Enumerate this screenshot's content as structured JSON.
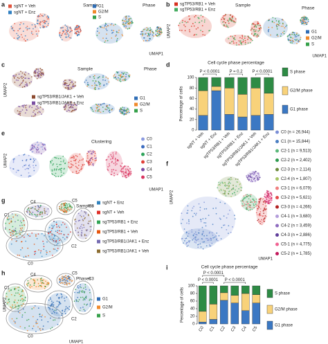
{
  "panels": {
    "a": {
      "label": "a",
      "sample_title": "Sample",
      "sample_legend": [
        {
          "name": "sgNT + Veh",
          "color": "#e0533d"
        },
        {
          "name": "sgNT + Enz",
          "color": "#2f7fc1"
        }
      ],
      "phase_title": "Phase",
      "phase_legend": [
        {
          "name": "G1",
          "color": "#2f6db5"
        },
        {
          "name": "G2/M",
          "color": "#f08a2c"
        },
        {
          "name": "S",
          "color": "#35a04a"
        }
      ],
      "x_axis": "UMAP1"
    },
    "b": {
      "label": "b",
      "sample_title": "Sample",
      "sample_legend": [
        {
          "name": "sgTP53/RB1 + Veh",
          "color": "#d7301f"
        },
        {
          "name": "sgTP53/RB1 + Enz",
          "color": "#41ab5d"
        }
      ],
      "phase_title": "Phase",
      "phase_legend": [
        {
          "name": "G1",
          "color": "#2f6db5"
        },
        {
          "name": "G2/M",
          "color": "#f08a2c"
        },
        {
          "name": "S",
          "color": "#35a04a"
        }
      ],
      "x_axis": "UMAP1",
      "y_axis": "UMAP2"
    },
    "c": {
      "label": "c",
      "sample_title": "Sample",
      "sample_legend": [
        {
          "name": "sgTP53/RB1/JAK1 + Veh",
          "color": "#8c4a2f"
        },
        {
          "name": "sgTP53/RB1/JAK1 + Enz",
          "color": "#7a4fa3"
        }
      ],
      "phase_title": "Phase",
      "phase_legend": [
        {
          "name": "G1",
          "color": "#2f6db5"
        },
        {
          "name": "G2/M",
          "color": "#f08a2c"
        },
        {
          "name": "S",
          "color": "#35a04a"
        }
      ],
      "y_axis": "UMAP2"
    },
    "e": {
      "label": "e",
      "title": "Clustering",
      "legend": [
        {
          "name": "C0",
          "color": "#8c9be0"
        },
        {
          "name": "C1",
          "color": "#3c6cc0"
        },
        {
          "name": "C2",
          "color": "#2ea35a"
        },
        {
          "name": "C3",
          "color": "#e0413a"
        },
        {
          "name": "C4",
          "color": "#7b4aa6"
        },
        {
          "name": "C5",
          "color": "#d9345f"
        }
      ],
      "x_axis": "UMAP1",
      "y_axis": "UMAP2"
    },
    "f": {
      "label": "f",
      "legend": [
        {
          "name": "C0 (n = 26,944)",
          "color": "#7b8fd6"
        },
        {
          "name": "C1 (n = 15,844)",
          "color": "#4a7ec2"
        },
        {
          "name": "C2-1 (n = 9,513)",
          "color": "#5bb87a"
        },
        {
          "name": "C2-2 (n = 2,402)",
          "color": "#2d9a4e"
        },
        {
          "name": "C2-3 (n = 2,114)",
          "color": "#6c8b3c"
        },
        {
          "name": "C2-4 (n = 1,807)",
          "color": "#a6c464"
        },
        {
          "name": "C3-1 (n = 6,079)",
          "color": "#f08080"
        },
        {
          "name": "C3-2 (n = 5,621)",
          "color": "#e34a4a"
        },
        {
          "name": "C3-3 (n = 4,266)",
          "color": "#b22222"
        },
        {
          "name": "C4-1 (n = 3,680)",
          "color": "#b39ddb"
        },
        {
          "name": "C4-2 (n = 3,459)",
          "color": "#8e6bbf"
        },
        {
          "name": "C4-3 (n = 2,886)",
          "color": "#5e3c99"
        },
        {
          "name": "C5-1 (n = 4,775)",
          "color": "#f06292"
        },
        {
          "name": "C5-2 (n = 1,785)",
          "color": "#c2185b"
        }
      ],
      "x_axis": "UMAP1",
      "y_axis": "UMAP2"
    },
    "g": {
      "label": "g",
      "title": "Samples",
      "legend": [
        {
          "name": "sgNT + Enz",
          "color": "#3182bd"
        },
        {
          "name": "sgNT + Veh",
          "color": "#de2d26"
        },
        {
          "name": "sgTP53/RB1 + Enz",
          "color": "#31a354"
        },
        {
          "name": "sgTP53/RB1 + Veh",
          "color": "#e6550d"
        },
        {
          "name": "sgTP53/RB1/JAK1 + Enz",
          "color": "#756bb1"
        },
        {
          "name": "sgTP53/RB1/JAK1 + Veh",
          "color": "#8c6d31"
        }
      ],
      "cluster_labels": [
        "C0",
        "C1",
        "C2",
        "C3",
        "C4",
        "C5"
      ]
    },
    "h": {
      "label": "h",
      "title": "Phases",
      "legend": [
        {
          "name": "G1",
          "color": "#2f6db5"
        },
        {
          "name": "G2/M",
          "color": "#f08a2c"
        },
        {
          "name": "S",
          "color": "#35a04a"
        }
      ],
      "cluster_labels": [
        "C0",
        "C1",
        "C2",
        "C3",
        "C4",
        "C5"
      ],
      "x_axis": "UMAP1",
      "y_axis": "UMAP2"
    }
  },
  "chart_data": [
    {
      "type": "bar",
      "stacked": true,
      "label": "d",
      "title": "Cell cycle phase percentage",
      "y_label": "Percentage of cells",
      "categories": [
        "sgNT + Veh",
        "sgNT + Enz",
        "sgTP53/RB1 + Veh",
        "sgTP53/RB1 + Enz",
        "sgTP53/RB1/JAK1 + Veh",
        "sgTP53/RB1/JAK1 + Enz"
      ],
      "series": [
        {
          "name": "G1 phase",
          "color": "#3b78c3",
          "values": [
            28,
            75,
            30,
            25,
            28,
            30
          ]
        },
        {
          "name": "G2/M phase",
          "color": "#f8d27a",
          "values": [
            47,
            8,
            50,
            43,
            52,
            40
          ]
        },
        {
          "name": "S phase",
          "color": "#2e8b45",
          "values": [
            25,
            17,
            20,
            32,
            20,
            30
          ]
        }
      ],
      "ylim": [
        0,
        100
      ],
      "yticks": [
        0,
        20,
        40,
        60,
        80,
        100
      ],
      "comparisons": [
        {
          "from": "sgNT + Veh",
          "to": "sgNT + Enz",
          "label": "P < 0.0001"
        },
        {
          "from": "sgTP53/RB1 + Veh",
          "to": "sgTP53/RB1 + Enz",
          "label": "P = 0.2"
        },
        {
          "from": "sgTP53/RB1/JAK1 + Veh",
          "to": "sgTP53/RB1/JAK1 + Enz",
          "label": "P < 0.0001"
        }
      ]
    },
    {
      "type": "bar",
      "stacked": true,
      "label": "i",
      "title": "Cell cycle phase percentage",
      "y_label": "Percentage of cells",
      "categories": [
        "C0",
        "C1",
        "C2",
        "C3",
        "C4",
        "C5"
      ],
      "category_colors": [
        "#2ea35a",
        "#2e8b45",
        "#e0413a",
        "#2a9d8f",
        "#3c8d3c",
        "#2e6b4a"
      ],
      "series": [
        {
          "name": "G1 phase",
          "color": "#3b78c3",
          "values": [
            5,
            12,
            62,
            55,
            35,
            55
          ]
        },
        {
          "name": "G2/M phase",
          "color": "#f8d27a",
          "values": [
            28,
            40,
            20,
            20,
            45,
            22
          ]
        },
        {
          "name": "S phase",
          "color": "#2e8b45",
          "values": [
            67,
            48,
            18,
            25,
            20,
            23
          ]
        }
      ],
      "ylim": [
        0,
        100
      ],
      "yticks": [
        0,
        20,
        40,
        60,
        80,
        100
      ],
      "comparisons": [
        {
          "from": "C0",
          "to": "C1",
          "label": "P < 0.0001"
        },
        {
          "from": "C2",
          "to": "C4",
          "label": "P < 0.0001"
        },
        {
          "from": "C0",
          "to": "C2",
          "label": "P < 0.0001"
        }
      ]
    }
  ]
}
